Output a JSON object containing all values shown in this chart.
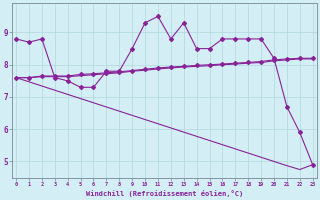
{
  "xlabel": "Windchill (Refroidissement éolien,°C)",
  "bg_color": "#d4eef5",
  "grid_color": "#b0d8dd",
  "line_color": "#882299",
  "x": [
    0,
    1,
    2,
    3,
    4,
    5,
    6,
    7,
    8,
    9,
    10,
    11,
    12,
    13,
    14,
    15,
    16,
    17,
    18,
    19,
    20,
    21,
    22,
    23
  ],
  "series1_jagged": [
    8.8,
    8.7,
    8.8,
    7.6,
    7.5,
    7.3,
    7.3,
    7.8,
    7.8,
    8.5,
    9.3,
    9.5,
    8.8,
    9.3,
    8.5,
    8.5,
    8.8,
    8.8,
    8.8,
    8.8,
    8.2,
    6.7,
    5.9,
    4.9
  ],
  "series2_flat": [
    7.6,
    7.6,
    7.65,
    7.65,
    7.65,
    7.7,
    7.72,
    7.75,
    7.78,
    7.82,
    7.86,
    7.9,
    7.93,
    7.95,
    7.98,
    8.0,
    8.02,
    8.05,
    8.07,
    8.1,
    8.15,
    8.18,
    8.2,
    8.2
  ],
  "series3_flat": [
    7.6,
    7.6,
    7.63,
    7.63,
    7.63,
    7.66,
    7.69,
    7.72,
    7.75,
    7.8,
    7.83,
    7.87,
    7.9,
    7.93,
    7.95,
    7.97,
    8.0,
    8.02,
    8.05,
    8.07,
    8.12,
    8.15,
    8.18,
    8.18
  ],
  "series4_diag": [
    7.6,
    7.47,
    7.34,
    7.21,
    7.08,
    6.95,
    6.82,
    6.69,
    6.56,
    6.43,
    6.3,
    6.17,
    6.04,
    5.91,
    5.78,
    5.65,
    5.52,
    5.39,
    5.26,
    5.13,
    5.0,
    4.87,
    4.75,
    4.9
  ],
  "ylim": [
    4.5,
    9.9
  ],
  "yticks": [
    5,
    6,
    7,
    8,
    9
  ],
  "xticks": [
    0,
    1,
    2,
    3,
    4,
    5,
    6,
    7,
    8,
    9,
    10,
    11,
    12,
    13,
    14,
    15,
    16,
    17,
    18,
    19,
    20,
    21,
    22,
    23
  ]
}
